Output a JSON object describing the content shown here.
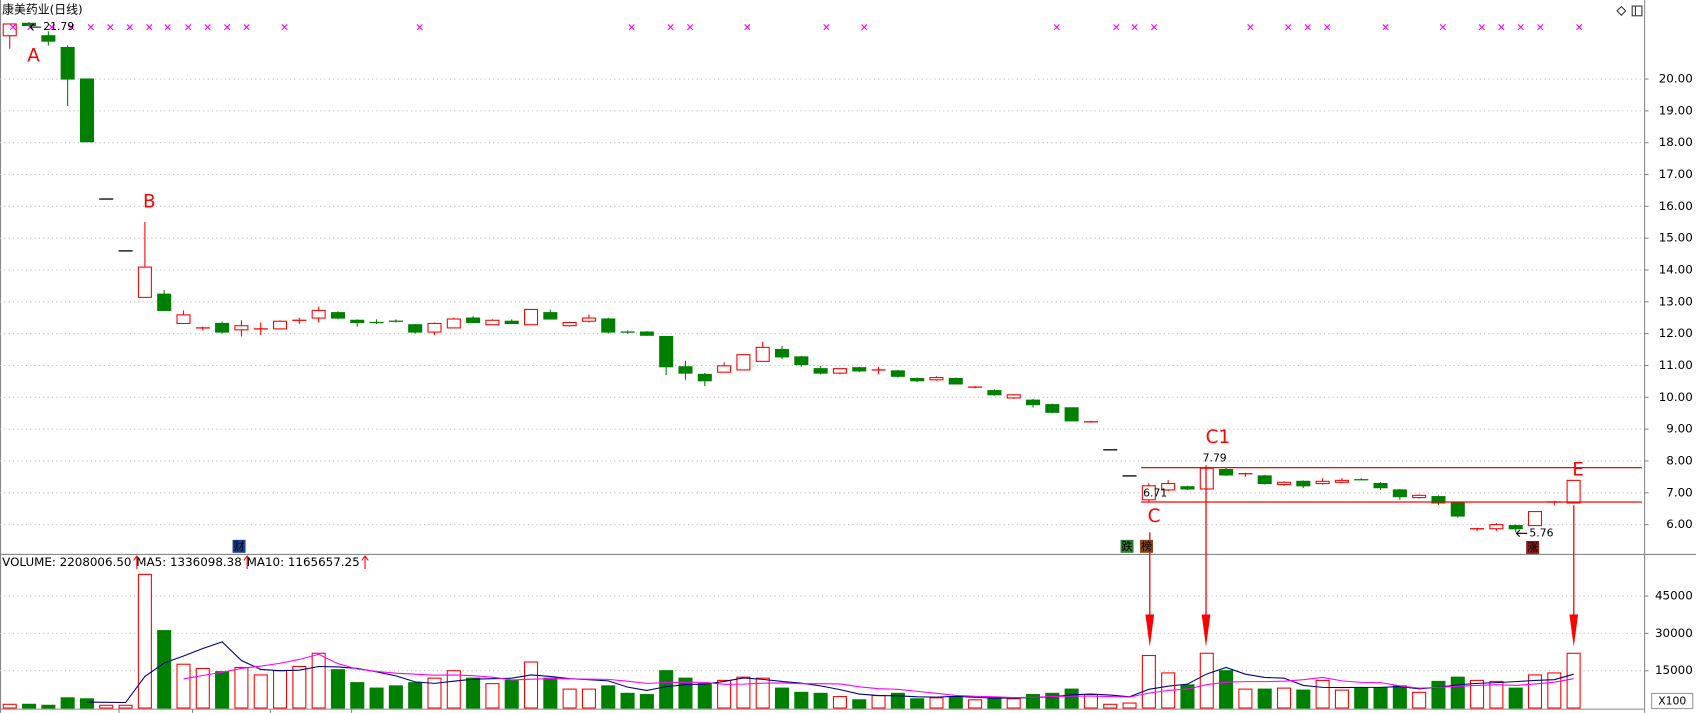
{
  "chart_data": [
    {
      "type": "candlestick",
      "title": "康美药业(日线)",
      "candles": [
        [
          21.36,
          21.73,
          20.95,
          21.73
        ],
        [
          21.75,
          21.79,
          21.66,
          21.68
        ],
        [
          21.36,
          21.5,
          21.05,
          21.19
        ],
        [
          20.99,
          21.06,
          19.15,
          20.0
        ],
        [
          20.0,
          20.0,
          18.03,
          18.03
        ],
        [
          16.23,
          16.23,
          16.23,
          16.23
        ],
        [
          14.6,
          14.6,
          14.6,
          14.6
        ],
        [
          13.14,
          15.51,
          13.14,
          14.09
        ],
        [
          13.24,
          13.37,
          12.73,
          12.73
        ],
        [
          12.32,
          12.73,
          12.32,
          12.59
        ],
        [
          12.18,
          12.22,
          12.1,
          12.18
        ],
        [
          12.32,
          12.38,
          12.0,
          12.05
        ],
        [
          12.12,
          12.42,
          11.91,
          12.25
        ],
        [
          12.15,
          12.35,
          11.96,
          12.15
        ],
        [
          12.15,
          12.42,
          12.15,
          12.39
        ],
        [
          12.39,
          12.5,
          12.3,
          12.42
        ],
        [
          12.49,
          12.85,
          12.35,
          12.73
        ],
        [
          12.66,
          12.7,
          12.45,
          12.49
        ],
        [
          12.42,
          12.45,
          12.22,
          12.35
        ],
        [
          12.39,
          12.45,
          12.3,
          12.35
        ],
        [
          12.42,
          12.45,
          12.35,
          12.39
        ],
        [
          12.28,
          12.3,
          12.0,
          12.05
        ],
        [
          12.05,
          12.35,
          11.95,
          12.32
        ],
        [
          12.18,
          12.5,
          12.18,
          12.46
        ],
        [
          12.49,
          12.55,
          12.35,
          12.35
        ],
        [
          12.28,
          12.45,
          12.28,
          12.42
        ],
        [
          12.39,
          12.45,
          12.3,
          12.32
        ],
        [
          12.28,
          12.76,
          12.28,
          12.76
        ],
        [
          12.66,
          12.76,
          12.46,
          12.46
        ],
        [
          12.25,
          12.38,
          12.22,
          12.35
        ],
        [
          12.39,
          12.6,
          12.35,
          12.49
        ],
        [
          12.46,
          12.5,
          12.0,
          12.05
        ],
        [
          12.08,
          12.1,
          12.0,
          12.05
        ],
        [
          12.05,
          12.08,
          11.93,
          11.95
        ],
        [
          11.91,
          11.91,
          10.7,
          10.96
        ],
        [
          10.96,
          11.15,
          10.55,
          10.76
        ],
        [
          10.72,
          10.76,
          10.35,
          10.52
        ],
        [
          10.79,
          11.1,
          10.79,
          10.99
        ],
        [
          10.86,
          11.35,
          10.86,
          11.34
        ],
        [
          11.13,
          11.75,
          11.13,
          11.57
        ],
        [
          11.5,
          11.62,
          11.2,
          11.27
        ],
        [
          11.27,
          11.3,
          10.96,
          11.03
        ],
        [
          10.9,
          10.99,
          10.72,
          10.76
        ],
        [
          10.76,
          10.9,
          10.72,
          10.9
        ],
        [
          10.93,
          10.96,
          10.79,
          10.83
        ],
        [
          10.83,
          10.96,
          10.72,
          10.86
        ],
        [
          10.83,
          10.86,
          10.62,
          10.66
        ],
        [
          10.59,
          10.62,
          10.48,
          10.52
        ],
        [
          10.55,
          10.66,
          10.52,
          10.62
        ],
        [
          10.59,
          10.62,
          10.42,
          10.42
        ],
        [
          10.32,
          10.35,
          10.28,
          10.32
        ],
        [
          10.21,
          10.25,
          10.05,
          10.08
        ],
        [
          9.98,
          10.1,
          9.95,
          10.08
        ],
        [
          9.91,
          9.95,
          9.68,
          9.77
        ],
        [
          9.77,
          9.8,
          9.5,
          9.53
        ],
        [
          9.67,
          9.67,
          9.26,
          9.26
        ],
        [
          9.23,
          9.26,
          9.2,
          9.23
        ],
        [
          8.35,
          8.35,
          8.35,
          8.35
        ],
        [
          7.53,
          7.53,
          7.53,
          7.53
        ],
        [
          6.78,
          7.3,
          6.71,
          7.22
        ],
        [
          7.09,
          7.4,
          7.05,
          7.29
        ],
        [
          7.19,
          7.22,
          7.09,
          7.12
        ],
        [
          7.12,
          7.79,
          7.12,
          7.77
        ],
        [
          7.73,
          7.79,
          7.53,
          7.56
        ],
        [
          7.59,
          7.63,
          7.5,
          7.6
        ],
        [
          7.53,
          7.56,
          7.26,
          7.29
        ],
        [
          7.26,
          7.36,
          7.22,
          7.33
        ],
        [
          7.36,
          7.39,
          7.15,
          7.22
        ],
        [
          7.29,
          7.46,
          7.26,
          7.36
        ],
        [
          7.33,
          7.46,
          7.3,
          7.39
        ],
        [
          7.43,
          7.46,
          7.39,
          7.41
        ],
        [
          7.29,
          7.33,
          7.09,
          7.16
        ],
        [
          7.09,
          7.12,
          6.78,
          6.88
        ],
        [
          6.85,
          6.95,
          6.82,
          6.92
        ],
        [
          6.88,
          6.92,
          6.62,
          6.68
        ],
        [
          6.68,
          6.7,
          6.22,
          6.27
        ],
        [
          5.83,
          5.9,
          5.8,
          5.87
        ],
        [
          5.87,
          6.05,
          5.8,
          6.0
        ],
        [
          5.97,
          6.0,
          5.76,
          5.87
        ],
        [
          5.97,
          6.41,
          5.97,
          6.41
        ],
        [
          6.68,
          6.75,
          6.6,
          6.71
        ],
        [
          6.68,
          7.39,
          6.68,
          7.39
        ]
      ],
      "up_color": "#ff0000",
      "down_color": "#008000",
      "flat_color": "#000000",
      "ylim": [
        5.08,
        22.48
      ],
      "yticks": [
        {
          "value": 6,
          "label": "6.00"
        },
        {
          "value": 7,
          "label": "7.00"
        },
        {
          "value": 8,
          "label": "8.00"
        },
        {
          "value": 9,
          "label": "9.00"
        },
        {
          "value": 10,
          "label": "10.00"
        },
        {
          "value": 11,
          "label": "11.00"
        },
        {
          "value": 12,
          "label": "12.00"
        },
        {
          "value": 13,
          "label": "13.00"
        },
        {
          "value": 14,
          "label": "14.00"
        },
        {
          "value": 15,
          "label": "15.00"
        },
        {
          "value": 16,
          "label": "16.00"
        },
        {
          "value": 17,
          "label": "17.00"
        },
        {
          "value": 18,
          "label": "18.00"
        },
        {
          "value": 19,
          "label": "19.00"
        },
        {
          "value": 20,
          "label": "20.00"
        }
      ],
      "grid": true,
      "levels": [
        7.79,
        6.71
      ],
      "level_color": "#ff0000",
      "annotations": [
        "A",
        "B",
        "C",
        "C1",
        "E"
      ],
      "price_labels": [
        "21.79",
        "7.79",
        "6.71",
        "5.76"
      ],
      "icons": [
        "财",
        "跌",
        "榜",
        "涨"
      ]
    },
    {
      "type": "bar",
      "legend": [
        "VOLUME: 2208006.50",
        "MA5: 1336098.38",
        "MA10: 1165657.25"
      ],
      "values": [
        1500,
        1500,
        1100,
        4100,
        3700,
        1100,
        1100,
        53700,
        31100,
        17600,
        15900,
        14600,
        16300,
        13300,
        15000,
        16700,
        22000,
        15400,
        10200,
        8000,
        8900,
        10200,
        12000,
        15000,
        12000,
        9800,
        11100,
        18500,
        12000,
        7600,
        7600,
        8900,
        5900,
        5400,
        15000,
        12000,
        9800,
        11100,
        12400,
        12000,
        8000,
        6300,
        5900,
        4600,
        3300,
        5000,
        5900,
        3700,
        4100,
        4600,
        3300,
        4100,
        3700,
        5400,
        5900,
        7600,
        5400,
        1500,
        2000,
        21100,
        14100,
        9300,
        22000,
        15000,
        7600,
        7600,
        8000,
        7200,
        11100,
        7200,
        8000,
        8000,
        8900,
        6300,
        10700,
        12400,
        11100,
        10700,
        8000,
        13300,
        14100,
        22000
      ],
      "series": [
        {
          "name": "MA5",
          "color": "#000080",
          "values": [
            null,
            null,
            null,
            null,
            2400,
            2300,
            2200,
            12700,
            18100,
            20900,
            23900,
            26600,
            19100,
            15500,
            15000,
            15200,
            16700,
            16500,
            15900,
            14500,
            12900,
            10500,
            9900,
            10800,
            11600,
            11800,
            12000,
            13300,
            12700,
            11800,
            11400,
            10900,
            8400,
            7100,
            8600,
            9400,
            9600,
            10700,
            12100,
            11500,
            10700,
            10000,
            8900,
            7400,
            5600,
            5000,
            4900,
            4500,
            4400,
            4700,
            4300,
            4000,
            4000,
            4200,
            4500,
            5300,
            5600,
            5200,
            4500,
            7500,
            8800,
            9600,
            13700,
            16300,
            13600,
            12300,
            12000,
            9100,
            8300,
            8200,
            8300,
            8300,
            8600,
            7700,
            8400,
            9300,
            9900,
            10200,
            10600,
            11100,
            11400,
            13600
          ]
        },
        {
          "name": "MA10",
          "color": "#ff00ff",
          "values": [
            null,
            null,
            null,
            null,
            null,
            null,
            null,
            null,
            null,
            11700,
            13100,
            14400,
            15900,
            16800,
            18000,
            19500,
            21600,
            17800,
            15700,
            14700,
            14000,
            13600,
            13200,
            13300,
            13000,
            12400,
            11300,
            11600,
            11800,
            11700,
            11600,
            11500,
            10800,
            9900,
            10200,
            10400,
            10300,
            9500,
            9600,
            10000,
            10100,
            9800,
            9800,
            9700,
            8500,
            7800,
            7500,
            6700,
            5900,
            5100,
            4700,
            4500,
            4200,
            4300,
            4600,
            4800,
            4800,
            4600,
            4400,
            6000,
            7100,
            7600,
            9400,
            10400,
            10600,
            10600,
            10800,
            11400,
            12300,
            10900,
            10300,
            10200,
            8900,
            8000,
            8300,
            8800,
            9100,
            9400,
            9100,
            9700,
            10400,
            11800
          ]
        }
      ],
      "ylim": [
        0,
        61500
      ],
      "yticks": [
        15000,
        30000,
        45000
      ],
      "grid": true,
      "unit": "X100"
    }
  ]
}
